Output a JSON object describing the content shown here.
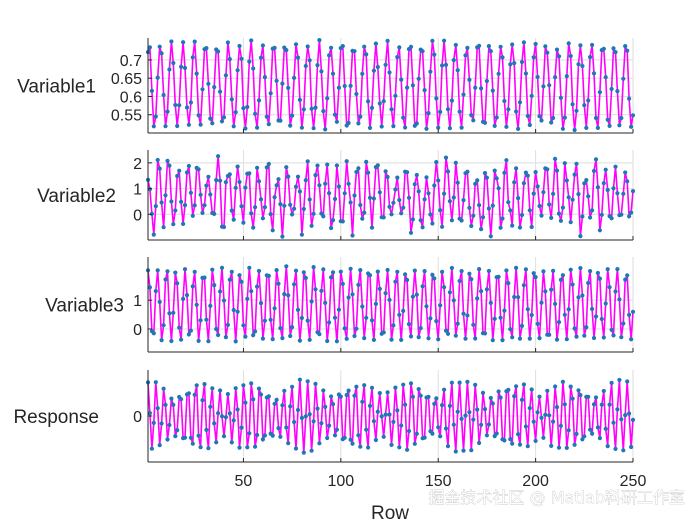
{
  "watermark": "掘金技术社区 @ Matlab科研工作室",
  "chart_data": {
    "type": "line",
    "xlabel": "Row",
    "x_ticks": [
      50,
      100,
      150,
      200,
      250
    ],
    "xlim": [
      1,
      250
    ],
    "line_color": "#ff00ff",
    "marker_color": "#1f77b4",
    "series": [
      {
        "name": "Variable1",
        "ylim": [
          0.5,
          0.76
        ],
        "yticks": [
          0.55,
          0.6,
          0.65,
          0.7
        ],
        "ytick_labels": [
          "0.55",
          "0.6",
          "0.65",
          "0.7"
        ],
        "period": 5.83,
        "center": 0.63,
        "amp": 0.115,
        "noise": 0.01
      },
      {
        "name": "Variable2",
        "ylim": [
          -1.0,
          2.5
        ],
        "yticks": [
          0,
          1,
          2
        ],
        "ytick_labels": [
          "0",
          "1",
          "2"
        ],
        "period": 5.1,
        "center": 0.7,
        "amp": 1.15,
        "noise": 0.45
      },
      {
        "name": "Variable3",
        "ylim": [
          -0.8,
          2.5
        ],
        "yticks": [
          0,
          1
        ],
        "ytick_labels": [
          "0",
          "1"
        ],
        "period": 4.72,
        "center": 0.85,
        "amp": 1.25,
        "noise": 0.08
      },
      {
        "name": "Response",
        "ylim": [
          -1.3,
          1.3
        ],
        "yticks": [
          0
        ],
        "ytick_labels": [
          "0"
        ],
        "period": 4.1,
        "center": 0.0,
        "amp": 1.0,
        "envelope_period": 27,
        "envelope_min": 0.55,
        "noise": 0.05
      }
    ]
  }
}
